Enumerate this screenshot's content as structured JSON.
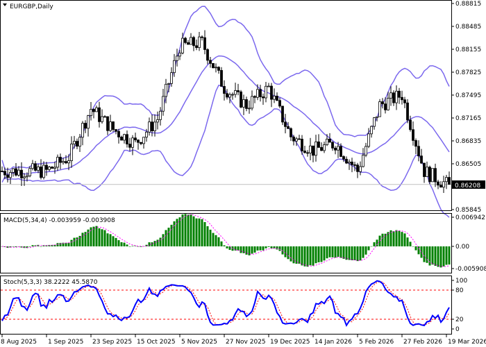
{
  "main": {
    "symbol_label": "EURGBP,Daily",
    "current_price": "0.86208",
    "price_axis": [
      "0.88815",
      "0.88485",
      "0.88155",
      "0.87825",
      "0.87495",
      "0.87165",
      "0.86835",
      "0.86505",
      "0.85845"
    ]
  },
  "macd": {
    "label": "MACD(5,34,4) -0.003959 -0.003908",
    "axis": [
      "0.006942",
      "0.00",
      "-0.005908"
    ]
  },
  "stoch": {
    "label": "Stoch(5,3,3) 38.2222 45.5870",
    "axis": [
      "100",
      "80",
      "20",
      "0"
    ]
  },
  "time_axis": [
    "8 Aug 2025",
    "1 Sep 2025",
    "23 Sep 2025",
    "15 Oct 2025",
    "5 Nov 2025",
    "27 Nov 2025",
    "19 Dec 2025",
    "14 Jan 2026",
    "5 Feb 2026",
    "27 Feb 2026",
    "19 Mar 2026"
  ],
  "chart_data": {
    "type": "candlestick",
    "indicators": [
      "Bollinger Bands",
      "MACD(5,34,4)",
      "Stochastic(5,3,3)"
    ],
    "ylim": [
      0.85845,
      0.88815
    ],
    "close_approx": [
      {
        "date": "8 Aug 2025",
        "close": 0.864
      },
      {
        "date": "20 Aug 2025",
        "close": 0.864
      },
      {
        "date": "1 Sep 2025",
        "close": 0.864
      },
      {
        "date": "11 Sep 2025",
        "close": 0.866
      },
      {
        "date": "23 Sep 2025",
        "close": 0.873
      },
      {
        "date": "3 Oct 2025",
        "close": 0.87
      },
      {
        "date": "15 Oct 2025",
        "close": 0.868
      },
      {
        "date": "27 Oct 2025",
        "close": 0.8715
      },
      {
        "date": "5 Nov 2025",
        "close": 0.882
      },
      {
        "date": "17 Nov 2025",
        "close": 0.8825
      },
      {
        "date": "27 Nov 2025",
        "close": 0.876
      },
      {
        "date": "9 Dec 2025",
        "close": 0.8735
      },
      {
        "date": "19 Dec 2025",
        "close": 0.876
      },
      {
        "date": "2 Jan 2026",
        "close": 0.869
      },
      {
        "date": "14 Jan 2026",
        "close": 0.867
      },
      {
        "date": "26 Jan 2026",
        "close": 0.868
      },
      {
        "date": "5 Feb 2026",
        "close": 0.864
      },
      {
        "date": "17 Feb 2026",
        "close": 0.8735
      },
      {
        "date": "27 Feb 2026",
        "close": 0.875
      },
      {
        "date": "11 Mar 2026",
        "close": 0.864
      },
      {
        "date": "19 Mar 2026",
        "close": 0.8621
      }
    ],
    "colors": {
      "bands": "#7b68ee",
      "macd_hist": "#008000",
      "macd_signal": "#ff00ff",
      "stoch_main": "#0000ff",
      "stoch_signal": "#ff0000",
      "levels": "#ff0000"
    },
    "stoch_levels": [
      20,
      80
    ]
  }
}
